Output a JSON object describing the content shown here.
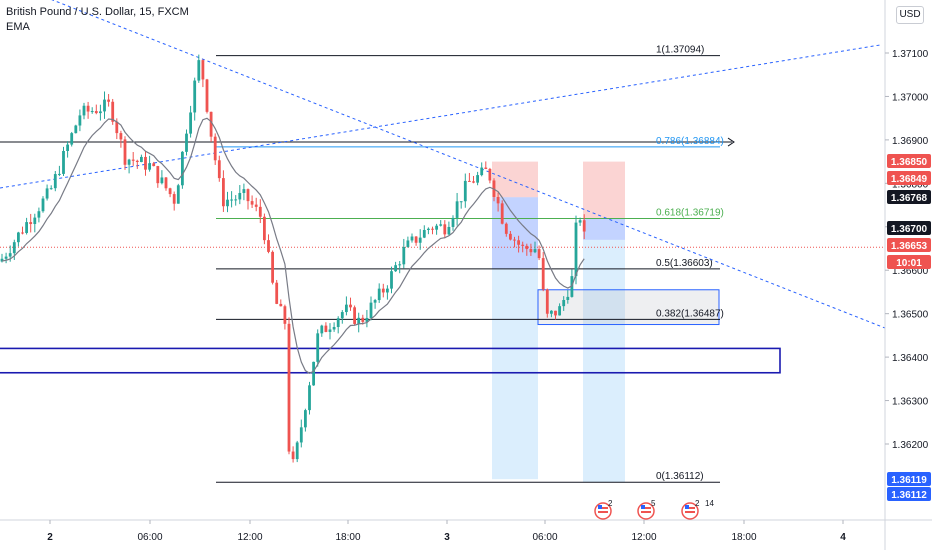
{
  "header": {
    "title": "British Pound / U.S. Dollar, 15, FXCM",
    "indicator": "EMA"
  },
  "currency_button": "USD",
  "chart_data": {
    "type": "candlestick",
    "ylim": [
      1.3604,
      1.3727
    ],
    "price_ticks": [
      "1.37100",
      "1.37000",
      "1.36900",
      "1.36800",
      "1.36700",
      "1.36600",
      "1.36500",
      "1.36400",
      "1.36300",
      "1.36200"
    ],
    "time_ticks": [
      "2",
      "06:00",
      "12:00",
      "18:00",
      "3",
      "06:00",
      "12:00",
      "18:00",
      "4"
    ],
    "fib_levels": [
      {
        "label": "1(1.37094)",
        "price": 1.37094,
        "color": "#131722"
      },
      {
        "label": "0.786(1.36884)",
        "price": 1.36884,
        "color": "#2196f3"
      },
      {
        "label": "0.618(1.36719)",
        "price": 1.36719,
        "color": "#4caf50"
      },
      {
        "label": "0.5(1.36603)",
        "price": 1.36603,
        "color": "#131722"
      },
      {
        "label": "0.382(1.36487)",
        "price": 1.36487,
        "color": "#131722"
      },
      {
        "label": "0(1.36112)",
        "price": 1.36112,
        "color": "#131722"
      }
    ],
    "price_badges": [
      {
        "label": "1.36850",
        "bg": "#ef5350",
        "fg": "#ffffff"
      },
      {
        "label": "1.36849",
        "bg": "#ef5350",
        "fg": "#ffffff"
      },
      {
        "label": "1.36768",
        "bg": "#131722",
        "fg": "#ffffff"
      },
      {
        "label": "1.36700",
        "bg": "#131722",
        "fg": "#ffffff"
      },
      {
        "label": "1.36653",
        "bg": "#ef5350",
        "fg": "#ffffff"
      },
      {
        "label": "10:01",
        "bg": "#ef5350",
        "fg": "#ffffff"
      },
      {
        "label": "1.36119",
        "bg": "#2962ff",
        "fg": "#ffffff"
      },
      {
        "label": "1.36112",
        "bg": "#2962ff",
        "fg": "#ffffff"
      }
    ],
    "last_price": 1.36653,
    "event_markers": [
      "2",
      "5",
      "2",
      "14"
    ],
    "colors": {
      "up": "#26a69a",
      "down": "#ef5350",
      "ema": "#787b86",
      "trend": "#2962ff",
      "zone": "#1a1ab0"
    }
  }
}
